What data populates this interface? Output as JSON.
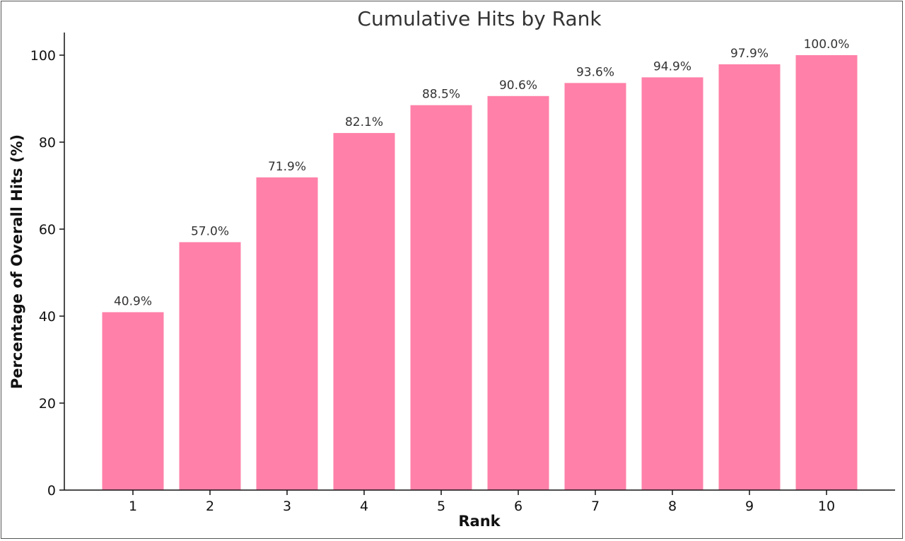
{
  "chart_data": {
    "type": "bar",
    "title": "Cumulative Hits by Rank",
    "xlabel": "Rank",
    "ylabel": "Percentage of Overall Hits (%)",
    "categories": [
      "1",
      "2",
      "3",
      "4",
      "5",
      "6",
      "7",
      "8",
      "9",
      "10"
    ],
    "values": [
      40.9,
      57.0,
      71.9,
      82.1,
      88.5,
      90.6,
      93.6,
      94.9,
      97.9,
      100.0
    ],
    "data_labels": [
      "40.9%",
      "57.0%",
      "71.9%",
      "82.1%",
      "88.5%",
      "90.6%",
      "93.6%",
      "94.9%",
      "97.9%",
      "100.0%"
    ],
    "ylim": [
      0,
      105
    ],
    "yticks": [
      0,
      20,
      40,
      60,
      80,
      100
    ],
    "grid": false,
    "legend": "none",
    "bar_color": "#ff80a8"
  }
}
